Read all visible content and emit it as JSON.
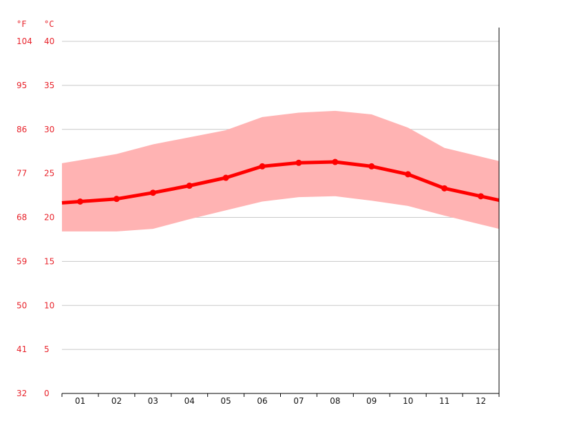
{
  "chart_data": {
    "type": "line",
    "categories": [
      "01",
      "02",
      "03",
      "04",
      "05",
      "06",
      "07",
      "08",
      "09",
      "10",
      "11",
      "12"
    ],
    "y_unit_left_label": "°F",
    "y_unit_right_label": "°C",
    "y_ticks_c": [
      0,
      5,
      10,
      15,
      20,
      25,
      30,
      35,
      40
    ],
    "y_ticks_f": [
      "32",
      "41",
      "50",
      "59",
      "68",
      "77",
      "86",
      "95",
      "104"
    ],
    "ylim": [
      0,
      40
    ],
    "grid": true,
    "series": [
      {
        "role": "mean",
        "values": [
          21.8,
          22.1,
          22.8,
          23.6,
          24.5,
          25.8,
          26.2,
          26.3,
          25.8,
          24.9,
          23.3,
          22.4
        ]
      },
      {
        "role": "max",
        "values": [
          26.5,
          27.2,
          28.3,
          29.1,
          29.9,
          31.4,
          31.9,
          32.1,
          31.7,
          30.2,
          27.9,
          26.9
        ]
      },
      {
        "role": "min",
        "values": [
          18.4,
          18.4,
          18.7,
          19.8,
          20.8,
          21.8,
          22.3,
          22.4,
          21.9,
          21.3,
          20.2,
          19.2
        ]
      }
    ],
    "colors": {
      "line": "#ff0000",
      "band": "#ffb3b3",
      "grid": "#c8c8c8",
      "axis": "#000000",
      "tick_text": "#e8232b"
    }
  }
}
